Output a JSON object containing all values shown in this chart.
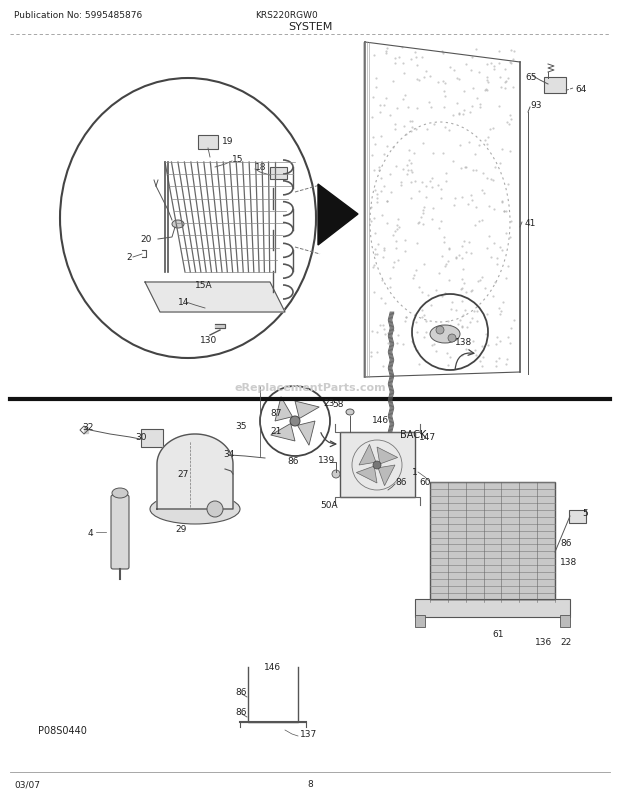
{
  "bg_color": "#ffffff",
  "line_color": "#333333",
  "text_color": "#222222",
  "pub_no": "Publication No: 5995485876",
  "model": "KRS220RGW0",
  "title": "SYSTEM",
  "footer_left": "03/07",
  "footer_center": "8",
  "watermark": "eReplacementParts.com",
  "p08s": "P08S0440"
}
